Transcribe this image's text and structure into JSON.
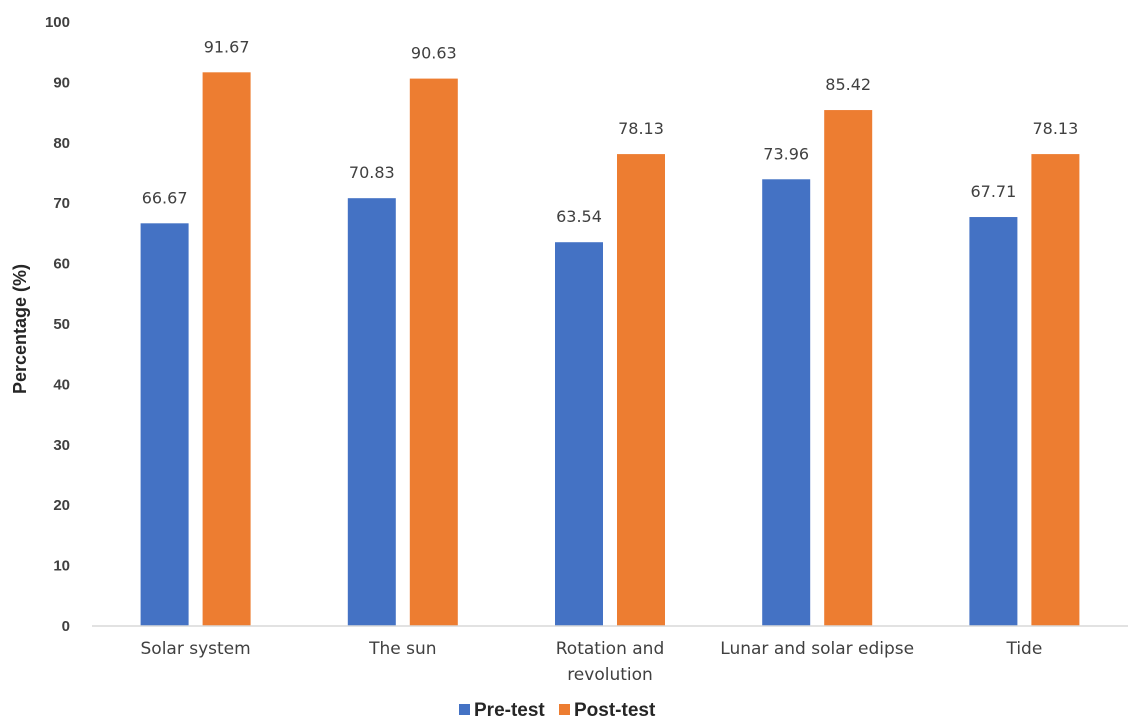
{
  "chart_data": {
    "type": "bar",
    "title": "",
    "xlabel": "",
    "ylabel": "Percentage (%)",
    "ylim": [
      0,
      100
    ],
    "yticks": [
      "0",
      "10",
      "20",
      "30",
      "40",
      "50",
      "60",
      "70",
      "80",
      "90",
      "100"
    ],
    "categories": [
      [
        "Solar system"
      ],
      [
        "The sun"
      ],
      [
        "Rotation and",
        "revolution"
      ],
      [
        "Lunar and solar edipse"
      ],
      [
        "Tide"
      ]
    ],
    "series": [
      {
        "name": "Pre-test",
        "color": "#4472C4",
        "values": [
          66.67,
          70.83,
          63.54,
          73.96,
          67.71
        ],
        "labels": [
          "66.67",
          "70.83",
          "63.54",
          "73.96",
          "67.71"
        ]
      },
      {
        "name": "Post-test",
        "color": "#ED7D31",
        "values": [
          91.67,
          90.63,
          78.13,
          85.42,
          78.13
        ],
        "labels": [
          "91.67",
          "90.63",
          "78.13",
          "85.42",
          "78.13"
        ]
      }
    ],
    "grid": false,
    "legend": "bottom-center"
  }
}
